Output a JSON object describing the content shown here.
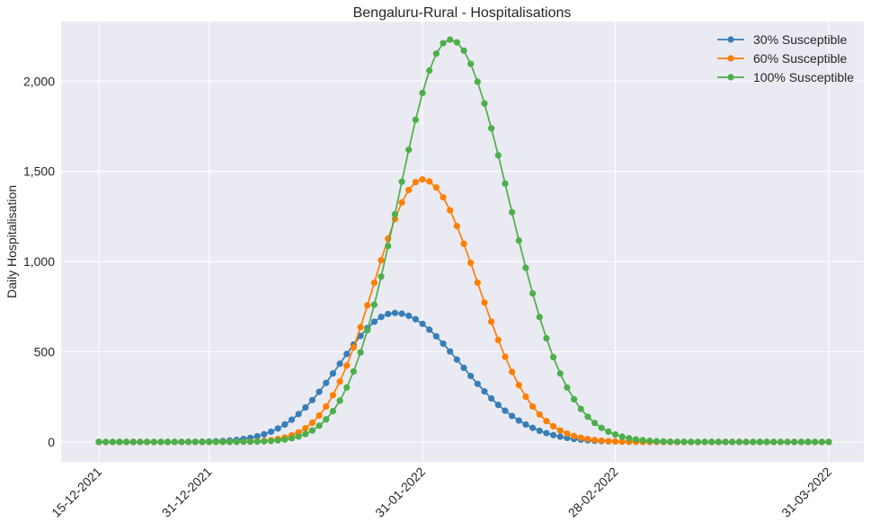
{
  "chart_data": {
    "type": "line",
    "title": "Bengaluru-Rural - Hospitalisations",
    "xlabel": "",
    "ylabel": "Daily Hospitalisation",
    "x_start": "15-12-2021",
    "x_end": "31-03-2022",
    "x_ticks": [
      "15-12-2021",
      "31-12-2021",
      "31-01-2022",
      "28-02-2022",
      "31-03-2022"
    ],
    "y_ticks": [
      0,
      500,
      1000,
      1500,
      2000
    ],
    "y_tick_labels": [
      "0",
      "500",
      "1,000",
      "1,500",
      "2,000"
    ],
    "ylim": [
      -110,
      2330
    ],
    "grid": true,
    "legend_position": "top-right",
    "marker": "circle",
    "series": [
      {
        "name": "30% Susceptible",
        "color": "#377eb8",
        "peak_date": "27-01-2022",
        "peak_value": 715,
        "rise_width_days": 8.0,
        "fall_width_days": 9.5
      },
      {
        "name": "60% Susceptible",
        "color": "#ff7f00",
        "peak_date": "31-01-2022",
        "peak_value": 1455,
        "rise_width_days": 7.0,
        "fall_width_days": 8.0
      },
      {
        "name": "100% Susceptible",
        "color": "#4daf4a",
        "peak_date": "04-02-2022",
        "peak_value": 2230,
        "rise_width_days": 7.5,
        "fall_width_days": 8.5
      }
    ]
  }
}
